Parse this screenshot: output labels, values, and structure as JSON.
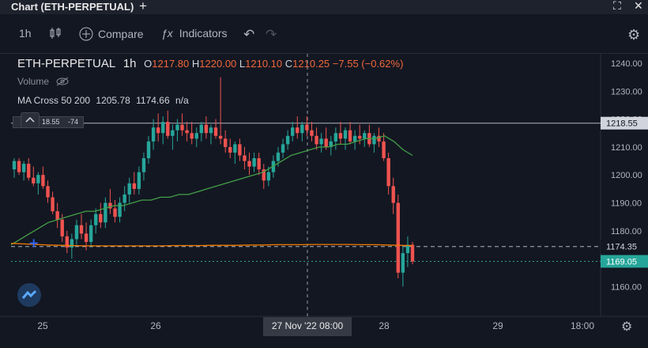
{
  "window": {
    "title": "Chart (ETH-PERPETUAL)"
  },
  "toolbar": {
    "interval": "1h",
    "compare": "Compare",
    "indicators": "Indicators"
  },
  "legend": {
    "symbol": "ETH-PERPETUAL",
    "interval": "1h",
    "o_label": "O",
    "o": "1217.80",
    "h_label": "H",
    "h": "1220.00",
    "l_label": "L",
    "l": "1210.10",
    "c_label": "C",
    "c": "1210.25",
    "change": "−7.55 (−0.62%)",
    "volume": "Volume",
    "ma_name": "MA Cross 50 200",
    "ma_fast": "1205.78",
    "ma_slow": "1174.66",
    "ma_na": "n/a",
    "rsi_a": "18.55",
    "rsi_b": "-74"
  },
  "colors": {
    "up": "#26a69a",
    "down": "#ef5350",
    "ma_fast": "#43a047",
    "ma_slow": "#f57c00",
    "bg": "#131722"
  },
  "chart_data": {
    "type": "candlestick",
    "title": "ETH-PERPETUAL 1h",
    "ylim": [
      1155,
      1245
    ],
    "y_ticks": [
      "1240.00",
      "1230.00",
      "1220.00",
      "1210.00",
      "1200.00",
      "1190.00",
      "1180.00",
      "1170.00",
      "1160.00"
    ],
    "x_ticks": [
      "25",
      "26",
      "28",
      "29",
      "18:00"
    ],
    "crosshair_label": "27 Nov '22  08:00",
    "price_lines": [
      {
        "label": "1218.55",
        "value": 1218.55,
        "style": "solid",
        "color": "#b2b5be"
      },
      {
        "label": "1174.35",
        "value": 1174.35,
        "style": "dashed",
        "color": "#b2b5be"
      },
      {
        "label": "1169.05",
        "value": 1169.05,
        "style": "dotted",
        "color": "#26a69a"
      }
    ],
    "candles": [
      [
        1202,
        1206,
        1199,
        1205
      ],
      [
        1205,
        1206,
        1200,
        1201
      ],
      [
        1201,
        1205,
        1198,
        1204
      ],
      [
        1204,
        1206,
        1198,
        1199
      ],
      [
        1199,
        1203,
        1196,
        1197
      ],
      [
        1197,
        1201,
        1193,
        1200
      ],
      [
        1200,
        1203,
        1195,
        1196
      ],
      [
        1196,
        1198,
        1190,
        1192
      ],
      [
        1192,
        1194,
        1186,
        1187
      ],
      [
        1187,
        1190,
        1181,
        1184
      ],
      [
        1184,
        1186,
        1176,
        1178
      ],
      [
        1178,
        1180,
        1172,
        1174
      ],
      [
        1174,
        1179,
        1170,
        1177
      ],
      [
        1177,
        1184,
        1175,
        1182
      ],
      [
        1182,
        1186,
        1177,
        1179
      ],
      [
        1179,
        1183,
        1173,
        1176
      ],
      [
        1176,
        1184,
        1174,
        1182
      ],
      [
        1182,
        1188,
        1179,
        1186
      ],
      [
        1186,
        1190,
        1181,
        1183
      ],
      [
        1183,
        1192,
        1181,
        1190
      ],
      [
        1190,
        1195,
        1186,
        1188
      ],
      [
        1188,
        1191,
        1183,
        1185
      ],
      [
        1185,
        1192,
        1183,
        1190
      ],
      [
        1190,
        1196,
        1187,
        1193
      ],
      [
        1193,
        1199,
        1190,
        1197
      ],
      [
        1197,
        1201,
        1193,
        1195
      ],
      [
        1195,
        1203,
        1193,
        1201
      ],
      [
        1201,
        1208,
        1198,
        1206
      ],
      [
        1206,
        1214,
        1204,
        1212
      ],
      [
        1212,
        1220,
        1209,
        1217
      ],
      [
        1217,
        1222,
        1212,
        1215
      ],
      [
        1215,
        1221,
        1211,
        1219
      ],
      [
        1219,
        1223,
        1213,
        1214
      ],
      [
        1214,
        1218,
        1209,
        1216
      ],
      [
        1216,
        1220,
        1212,
        1218
      ],
      [
        1218,
        1222,
        1214,
        1216
      ],
      [
        1216,
        1219,
        1212,
        1215
      ],
      [
        1215,
        1219,
        1211,
        1213
      ],
      [
        1213,
        1217,
        1210,
        1215
      ],
      [
        1215,
        1219,
        1212,
        1218
      ],
      [
        1218,
        1221,
        1213,
        1215
      ],
      [
        1215,
        1218,
        1211,
        1217
      ],
      [
        1217,
        1220,
        1213,
        1214
      ],
      [
        1214,
        1235,
        1211,
        1213
      ],
      [
        1213,
        1216,
        1208,
        1210
      ],
      [
        1210,
        1213,
        1206,
        1208
      ],
      [
        1208,
        1212,
        1204,
        1211
      ],
      [
        1211,
        1213,
        1205,
        1207
      ],
      [
        1207,
        1210,
        1202,
        1205
      ],
      [
        1205,
        1208,
        1200,
        1203
      ],
      [
        1203,
        1208,
        1201,
        1206
      ],
      [
        1206,
        1208,
        1200,
        1202
      ],
      [
        1202,
        1204,
        1195,
        1198
      ],
      [
        1198,
        1203,
        1196,
        1201
      ],
      [
        1201,
        1207,
        1199,
        1205
      ],
      [
        1205,
        1210,
        1203,
        1208
      ],
      [
        1208,
        1213,
        1206,
        1211
      ],
      [
        1211,
        1216,
        1209,
        1214
      ],
      [
        1214,
        1219,
        1212,
        1217
      ],
      [
        1217,
        1221,
        1213,
        1215
      ],
      [
        1215,
        1219,
        1212,
        1218
      ],
      [
        1218,
        1221,
        1214,
        1216
      ],
      [
        1216,
        1219,
        1212,
        1214
      ],
      [
        1214,
        1217,
        1209,
        1211
      ],
      [
        1211,
        1215,
        1208,
        1213
      ],
      [
        1213,
        1217,
        1209,
        1210
      ],
      [
        1210,
        1214,
        1207,
        1212
      ],
      [
        1212,
        1217,
        1209,
        1215
      ],
      [
        1215,
        1219,
        1211,
        1213
      ],
      [
        1213,
        1217,
        1209,
        1216
      ],
      [
        1216,
        1219,
        1211,
        1212
      ],
      [
        1212,
        1216,
        1209,
        1214
      ],
      [
        1214,
        1218,
        1211,
        1213
      ],
      [
        1213,
        1216,
        1210,
        1215
      ],
      [
        1215,
        1218,
        1210,
        1211
      ],
      [
        1211,
        1215,
        1208,
        1214
      ],
      [
        1214,
        1217,
        1210,
        1212
      ],
      [
        1212,
        1215,
        1205,
        1206
      ],
      [
        1206,
        1208,
        1193,
        1196
      ],
      [
        1196,
        1199,
        1186,
        1190
      ],
      [
        1190,
        1193,
        1163,
        1165
      ],
      [
        1165,
        1175,
        1160,
        1172
      ],
      [
        1172,
        1178,
        1167,
        1175
      ],
      [
        1175,
        1176,
        1168,
        1169
      ]
    ],
    "ma_fast": [
      1175,
      1177,
      1179,
      1181,
      1183,
      1184,
      1185,
      1186,
      1187,
      1187,
      1188,
      1189,
      1189,
      1190,
      1191,
      1191,
      1192,
      1192,
      1193,
      1193,
      1194,
      1195,
      1196,
      1197,
      1198,
      1199,
      1200,
      1201,
      1203,
      1205,
      1207,
      1208,
      1209,
      1210,
      1210,
      1211,
      1211,
      1212,
      1213,
      1213,
      1214,
      1212,
      1209,
      1207
    ],
    "ma_slow": [
      1175.5,
      1175.3,
      1175.1,
      1174.9,
      1174.8,
      1174.7,
      1174.6,
      1174.6,
      1174.6,
      1174.6,
      1174.6,
      1174.6,
      1174.6,
      1174.7,
      1174.7,
      1174.7,
      1174.8,
      1174.8,
      1174.8,
      1174.9,
      1174.9,
      1175.0,
      1175.0,
      1175.0,
      1175.1,
      1175.1,
      1175.1,
      1175.1,
      1175.0,
      1175.0,
      1174.9,
      1174.8,
      1174.7
    ]
  }
}
